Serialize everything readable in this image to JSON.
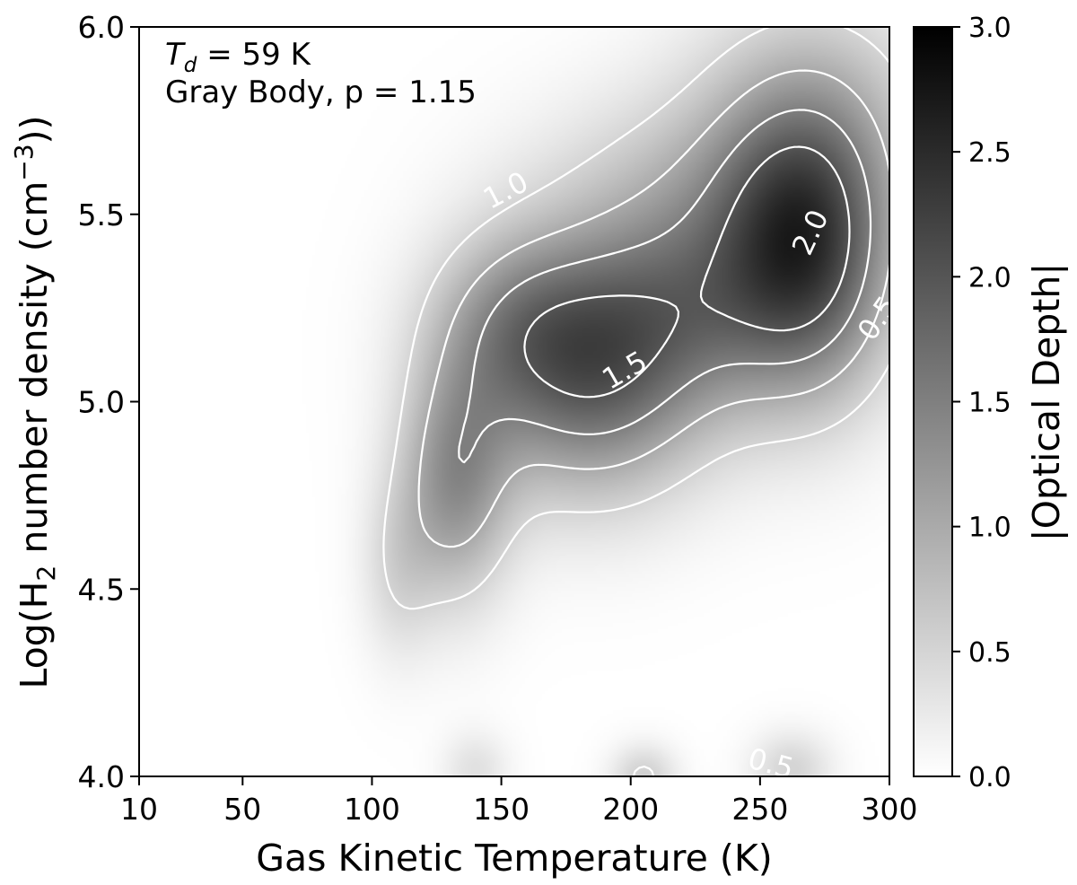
{
  "chart_data": {
    "type": "heatmap",
    "annotation": {
      "line1_symbol": "T",
      "line1_subscript": "d",
      "line1_rest": " = 59 K",
      "line2": "Gray Body, p = 1.15"
    },
    "xlabel": "Gas Kinetic Temperature (K)",
    "ylabel": {
      "prefix": "Log(H",
      "sub": "2",
      "middle": " number density (cm",
      "sup": "−3",
      "suffix": "))"
    },
    "xlim": [
      10,
      300
    ],
    "ylim": [
      4.0,
      6.0
    ],
    "xticks": [
      {
        "value": 10,
        "label": "10"
      },
      {
        "value": 50,
        "label": "50"
      },
      {
        "value": 100,
        "label": "100"
      },
      {
        "value": 150,
        "label": "150"
      },
      {
        "value": 200,
        "label": "200"
      },
      {
        "value": 250,
        "label": "250"
      },
      {
        "value": 300,
        "label": "300"
      }
    ],
    "yticks": [
      {
        "value": 4.0,
        "label": "4.0"
      },
      {
        "value": 4.5,
        "label": "4.5"
      },
      {
        "value": 5.0,
        "label": "5.0"
      },
      {
        "value": 5.5,
        "label": "5.5"
      },
      {
        "value": 6.0,
        "label": "6.0"
      }
    ],
    "colorbar": {
      "label": "|Optical Depth|",
      "range": [
        0.0,
        3.0
      ],
      "ticks": [
        {
          "value": 0.0,
          "label": "0.0"
        },
        {
          "value": 0.5,
          "label": "0.5"
        },
        {
          "value": 1.0,
          "label": "1.0"
        },
        {
          "value": 1.5,
          "label": "1.5"
        },
        {
          "value": 2.0,
          "label": "2.0"
        },
        {
          "value": 2.5,
          "label": "2.5"
        },
        {
          "value": 3.0,
          "label": "3.0"
        }
      ],
      "colormap": "gray_r",
      "low_color": "#ffffff",
      "high_color": "#000000"
    },
    "field_components": [
      {
        "x": 132,
        "y": 4.78,
        "amp": 1.2,
        "sx": 15,
        "sy": 0.22
      },
      {
        "x": 184,
        "y": 5.1,
        "amp": 1.9,
        "sx": 32,
        "sy": 0.24
      },
      {
        "x": 268,
        "y": 5.4,
        "amp": 2.15,
        "sx": 24,
        "sy": 0.27
      },
      {
        "x": 225,
        "y": 5.28,
        "amp": 0.85,
        "sx": 28,
        "sy": 0.2
      },
      {
        "x": 152,
        "y": 5.22,
        "amp": 0.6,
        "sx": 22,
        "sy": 0.17
      },
      {
        "x": 235,
        "y": 5.6,
        "amp": 0.55,
        "sx": 45,
        "sy": 0.18
      },
      {
        "x": 270,
        "y": 5.85,
        "amp": 0.45,
        "sx": 35,
        "sy": 0.2
      },
      {
        "x": 110,
        "y": 4.55,
        "amp": 0.4,
        "sx": 10,
        "sy": 0.17
      },
      {
        "x": 140,
        "y": 4.02,
        "amp": 0.35,
        "sx": 9,
        "sy": 0.07
      },
      {
        "x": 205,
        "y": 4.0,
        "amp": 0.55,
        "sx": 9,
        "sy": 0.06
      },
      {
        "x": 262,
        "y": 4.02,
        "amp": 0.5,
        "sx": 11,
        "sy": 0.07
      }
    ],
    "contour_levels": [
      0.5,
      1.0,
      1.5,
      2.0
    ],
    "contour_color": "#ffffff",
    "contour_labels": [
      {
        "text": "1.0",
        "x": 152,
        "y": 5.56,
        "angle": -28
      },
      {
        "text": "2.0",
        "x": 270,
        "y": 5.45,
        "angle": -65
      },
      {
        "text": "1.5",
        "x": 198,
        "y": 5.08,
        "angle": -30
      },
      {
        "text": "0.5",
        "x": 296,
        "y": 5.22,
        "angle": -55
      },
      {
        "text": "0.5",
        "x": 254,
        "y": 4.03,
        "angle": 15
      }
    ]
  }
}
